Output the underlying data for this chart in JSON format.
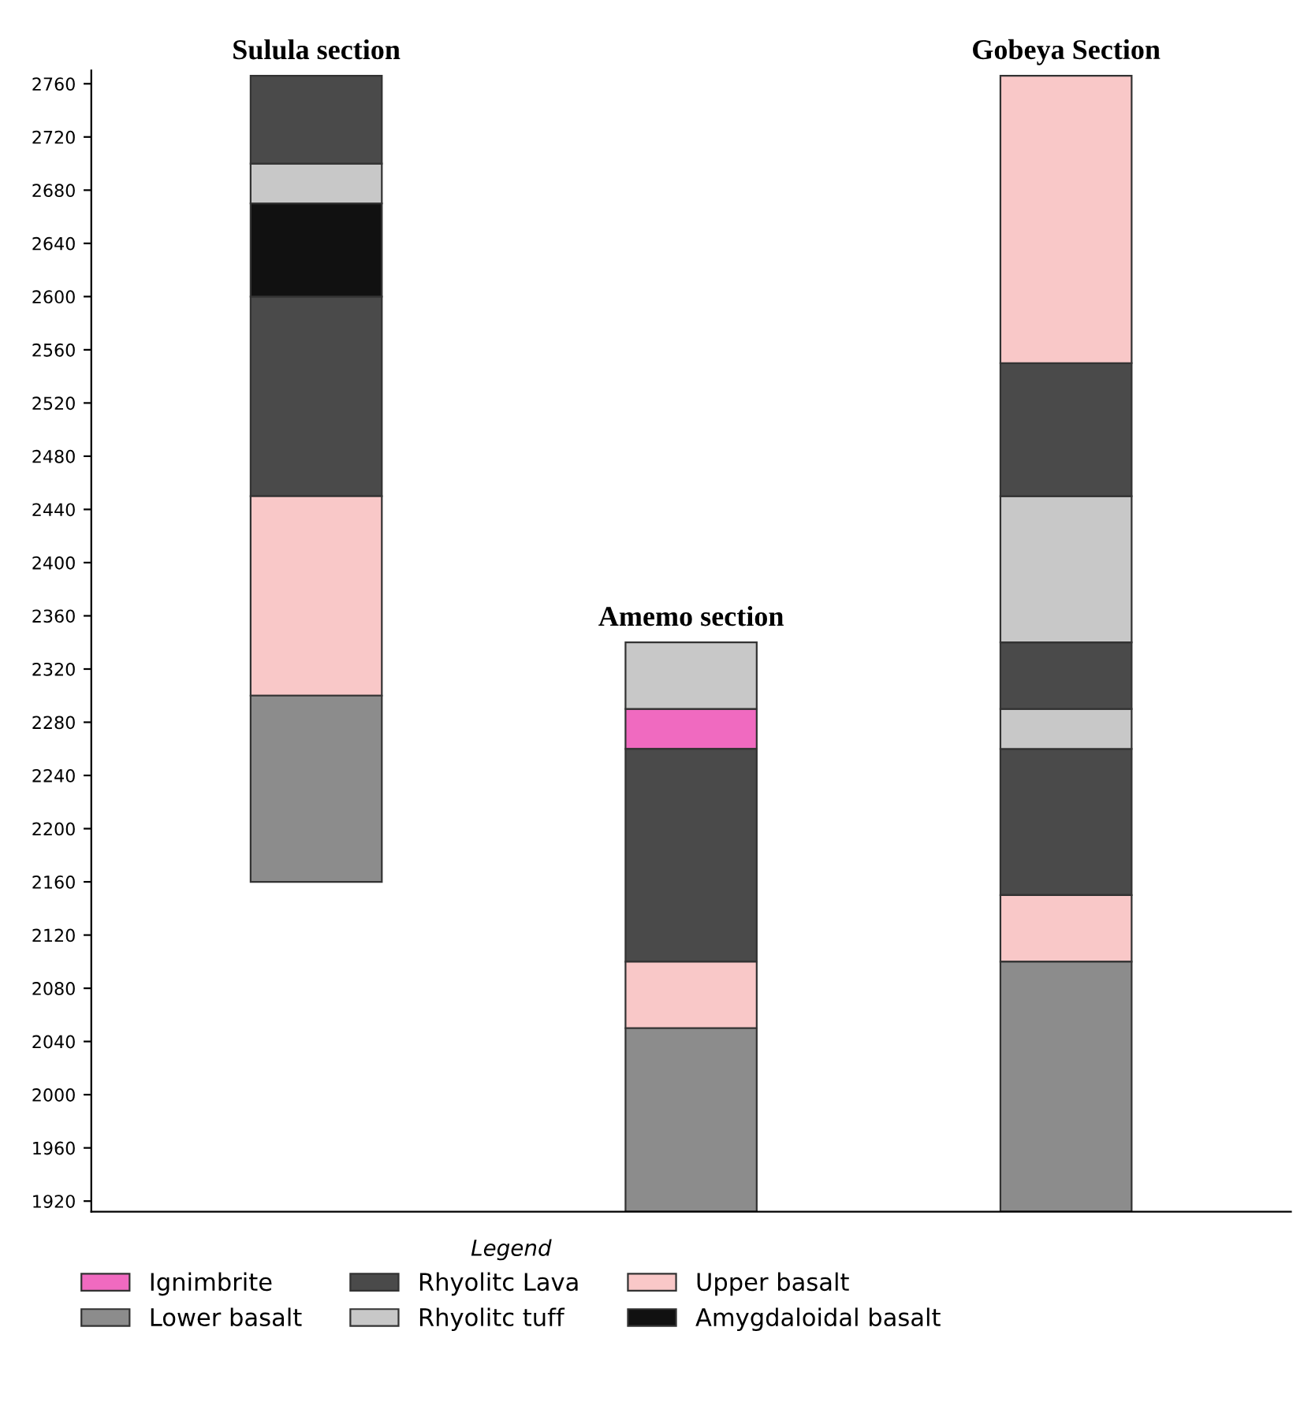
{
  "chart_data": {
    "type": "bar",
    "categories": [
      "Sulula section",
      "Amemo section",
      "Gobeya Section"
    ],
    "legend_title": "Legend",
    "legend": "bottom",
    "tick_labels": "y",
    "ylim": [
      1912,
      2770
    ],
    "yticks": [
      1920,
      1960,
      2000,
      2040,
      2080,
      2120,
      2160,
      2200,
      2240,
      2280,
      2320,
      2360,
      2400,
      2440,
      2480,
      2520,
      2560,
      2600,
      2640,
      2680,
      2720,
      2760
    ],
    "series": [
      {
        "name": "Ignimbrite",
        "color": "#f06ac0",
        "base": [
          null,
          2260,
          null
        ],
        "values": [
          null,
          30,
          null
        ]
      },
      {
        "name": "Rhyolitc Lava",
        "color": "#4a4a4a",
        "base": [
          2450,
          2100,
          2150
        ],
        "values": [
          150,
          160,
          110
        ]
      },
      {
        "name": "Upper basalt",
        "color": "#f9c8c8",
        "base": [
          2300,
          2050,
          2100
        ],
        "values": [
          150,
          50,
          50
        ]
      },
      {
        "name": "Lower basalt",
        "color": "#8c8c8c",
        "base": [
          2160,
          1912,
          1912
        ],
        "values": [
          140,
          138,
          188
        ]
      },
      {
        "name": "Rhyolitc tuff",
        "color": "#c8c8c8",
        "base": [
          2670,
          2290,
          2260
        ],
        "values": [
          30,
          50,
          30
        ]
      },
      {
        "name": "Amygdaloidal basalt",
        "color": "#111111",
        "base": [
          2600,
          null,
          null
        ],
        "values": [
          70,
          null,
          null
        ]
      },
      {
        "color": "#4a4a4a",
        "base": [
          2700,
          null,
          2290
        ],
        "values": [
          66,
          null,
          50
        ]
      },
      {
        "color": "#c8c8c8",
        "base": [
          null,
          null,
          2340
        ],
        "values": [
          null,
          null,
          110
        ]
      },
      {
        "color": "#4a4a4a",
        "base": [
          null,
          null,
          2450
        ],
        "values": [
          null,
          null,
          100
        ]
      },
      {
        "color": "#f9c8c8",
        "base": [
          null,
          null,
          2550
        ],
        "values": [
          null,
          null,
          216
        ]
      }
    ]
  }
}
